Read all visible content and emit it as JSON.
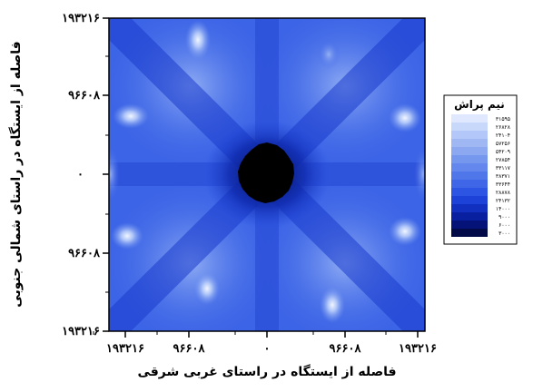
{
  "chart_data": {
    "type": "heatmap",
    "title": "",
    "xlabel": "فاصله از ایستگاه در راستای غربی شرقی",
    "ylabel": "فاصله از ایستگاه در راستای شمالی جنوبی",
    "xticks": [
      "۱۹۳۲۱۶",
      "۹۶۶۰۸",
      "۰",
      "۹۶۶۰۸",
      "۱۹۳۲۱۶"
    ],
    "yticks": [
      "۱۹۳۲۱۶",
      "۹۶۶۰۸",
      "۰",
      "۹۶۶۰۸",
      "۱۹۳۲۱۶"
    ],
    "legend": {
      "title": "نیم پراش",
      "position": "right",
      "levels": [
        "۳۱۵۹۵",
        "۲۶۸۲۸",
        "۲۴۱۰۴",
        "۵۷۲۵۶",
        "۵۴۲۰۹",
        "۲۷۸۵۴",
        "۳۳۱۱۷",
        "۳۸۳۷۱",
        "۳۳۶۴۴",
        "۲۸۸۷۸",
        "۲۴۱۳۲",
        "۱۴۰۰۰",
        "۹۰۰۰",
        "۶۰۰۰",
        "۳۰۰۰"
      ],
      "colors": [
        "#dfe8ff",
        "#c8d8fb",
        "#b3c8f8",
        "#9fb8f4",
        "#8ba8f1",
        "#7697ee",
        "#6387ec",
        "#5077ea",
        "#3e66e7",
        "#2c55e3",
        "#1c42d8",
        "#1130c0",
        "#0820a0",
        "#051378",
        "#020a48"
      ]
    },
    "center_value_color": "#000000",
    "grid": false
  }
}
